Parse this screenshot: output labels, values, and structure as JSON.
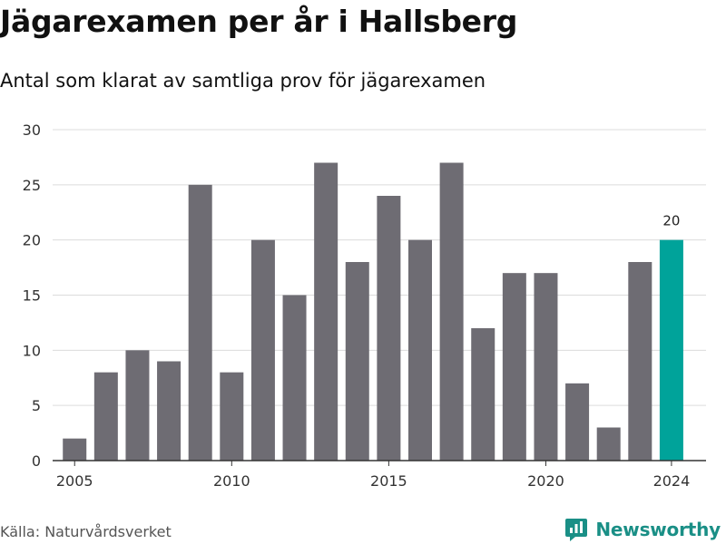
{
  "title": "Jägarexamen per år i Hallsberg",
  "subtitle": "Antal som klarat av samtliga prov för jägarexamen",
  "source": "Källa: Naturvårdsverket",
  "brand": {
    "name": "Newsworthy",
    "logo_icon": "newsworthy-logo-icon"
  },
  "colors": {
    "bar": "#6e6c73",
    "highlight": "#00a39a",
    "grid": "#dcdcdc",
    "axis": "#333333",
    "brand": "#1a8f86"
  },
  "chart_data": {
    "type": "bar",
    "title": "Jägarexamen per år i Hallsberg",
    "subtitle": "Antal som klarat av samtliga prov för jägarexamen",
    "xlabel": "",
    "ylabel": "",
    "categories": [
      2005,
      2006,
      2007,
      2008,
      2009,
      2010,
      2011,
      2012,
      2013,
      2014,
      2015,
      2016,
      2017,
      2018,
      2019,
      2020,
      2021,
      2022,
      2023,
      2024
    ],
    "values": [
      2,
      8,
      10,
      9,
      25,
      8,
      20,
      15,
      27,
      18,
      24,
      20,
      27,
      12,
      17,
      17,
      7,
      3,
      18,
      20
    ],
    "xticks": [
      2005,
      2010,
      2015,
      2020,
      2024
    ],
    "yticks": [
      0,
      5,
      10,
      15,
      20,
      25,
      30
    ],
    "ylim": [
      0,
      30
    ],
    "grid": true,
    "highlight": {
      "category": 2024,
      "label": "20"
    }
  }
}
